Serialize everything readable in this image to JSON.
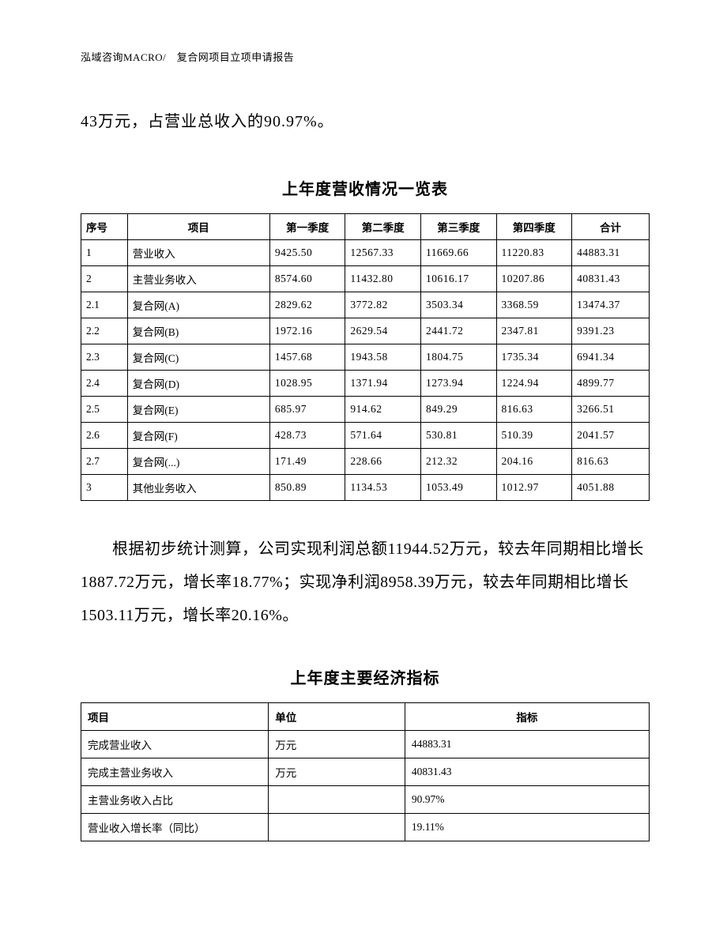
{
  "header": {
    "text": "泓域咨询MACRO/　复合网项目立项申请报告"
  },
  "intro_line": "43万元，占营业总收入的90.97%。",
  "table1": {
    "title": "上年度营收情况一览表",
    "columns": [
      "序号",
      "项目",
      "第一季度",
      "第二季度",
      "第三季度",
      "第四季度",
      "合计"
    ],
    "rows": [
      [
        "1",
        "营业收入",
        "9425.50",
        "12567.33",
        "11669.66",
        "11220.83",
        "44883.31"
      ],
      [
        "2",
        "主营业务收入",
        "8574.60",
        "11432.80",
        "10616.17",
        "10207.86",
        "40831.43"
      ],
      [
        "2.1",
        "复合网(A)",
        "2829.62",
        "3772.82",
        "3503.34",
        "3368.59",
        "13474.37"
      ],
      [
        "2.2",
        "复合网(B)",
        "1972.16",
        "2629.54",
        "2441.72",
        "2347.81",
        "9391.23"
      ],
      [
        "2.3",
        "复合网(C)",
        "1457.68",
        "1943.58",
        "1804.75",
        "1735.34",
        "6941.34"
      ],
      [
        "2.4",
        "复合网(D)",
        "1028.95",
        "1371.94",
        "1273.94",
        "1224.94",
        "4899.77"
      ],
      [
        "2.5",
        "复合网(E)",
        "685.97",
        "914.62",
        "849.29",
        "816.63",
        "3266.51"
      ],
      [
        "2.6",
        "复合网(F)",
        "428.73",
        "571.64",
        "530.81",
        "510.39",
        "2041.57"
      ],
      [
        "2.7",
        "复合网(...)",
        "171.49",
        "228.66",
        "212.32",
        "204.16",
        "816.63"
      ],
      [
        "3",
        "其他业务收入",
        "850.89",
        "1134.53",
        "1053.49",
        "1012.97",
        "4051.88"
      ]
    ]
  },
  "paragraph": "根据初步统计测算，公司实现利润总额11944.52万元，较去年同期相比增长1887.72万元，增长率18.77%；实现净利润8958.39万元，较去年同期相比增长1503.11万元，增长率20.16%。",
  "table2": {
    "title": "上年度主要经济指标",
    "columns": [
      "项目",
      "单位",
      "指标"
    ],
    "rows": [
      [
        "完成营业收入",
        "万元",
        "44883.31"
      ],
      [
        "完成主营业务收入",
        "万元",
        "40831.43"
      ],
      [
        "主营业务收入占比",
        "",
        "90.97%"
      ],
      [
        "营业收入增长率（同比）",
        "",
        "19.11%"
      ]
    ]
  },
  "styling": {
    "page_bg": "#ffffff",
    "text_color": "#000000",
    "border_color": "#000000",
    "body_font_size_pt": 15,
    "table_font_size_pt": 10.5,
    "header_font_size_pt": 10,
    "font_family": "SimSun"
  }
}
